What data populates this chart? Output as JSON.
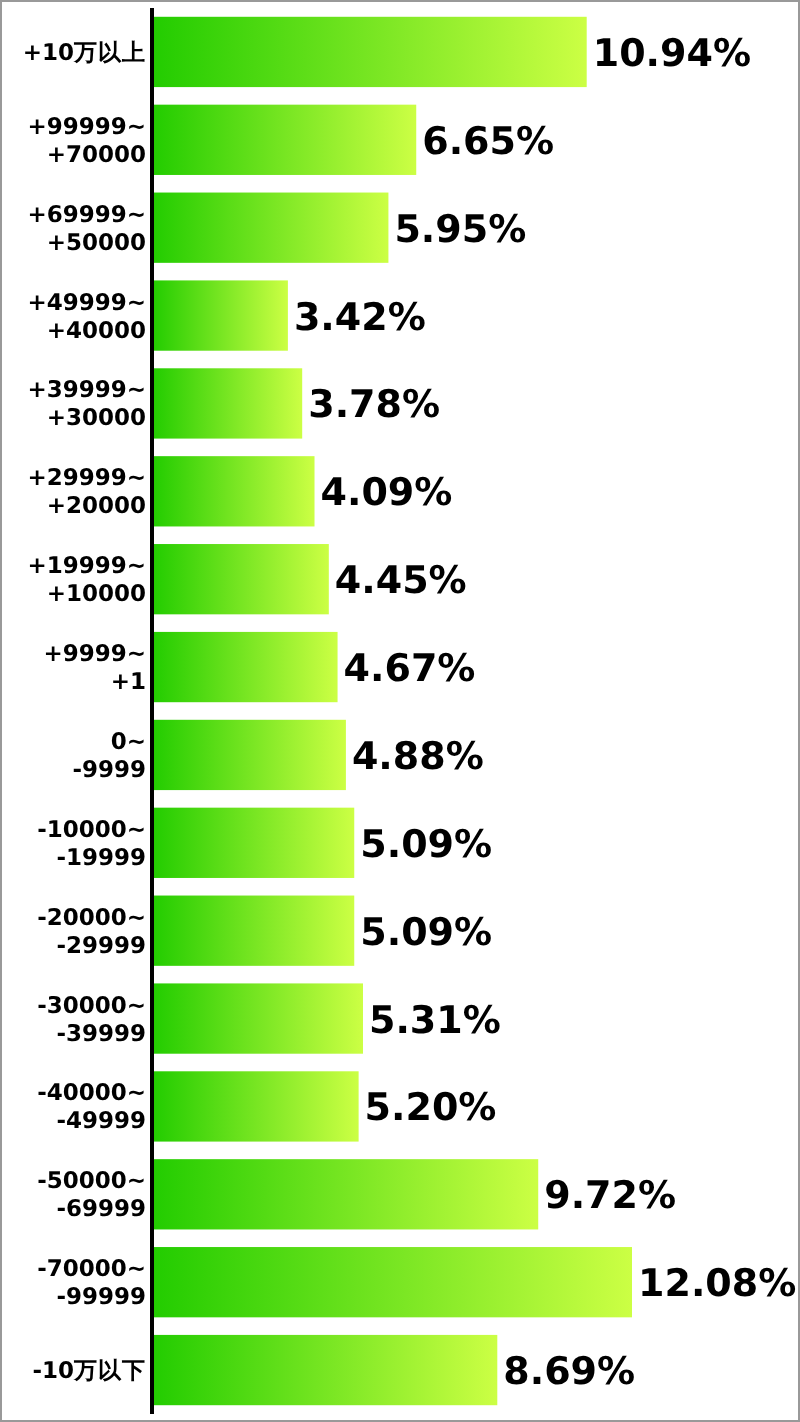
{
  "chart_data": {
    "type": "bar",
    "orientation": "horizontal",
    "color": "#22cc00",
    "categories": [
      "+10万以上",
      "+99999~+70000",
      "+69999~+50000",
      "+49999~+40000",
      "+39999~+30000",
      "+29999~+20000",
      "+19999~+10000",
      "+9999~+1",
      "0~-9999",
      "-10000~-19999",
      "-20000~-29999",
      "-30000~-39999",
      "-40000~-49999",
      "-50000~-69999",
      "-70000~-99999",
      "-10万以下"
    ],
    "values": [
      10.94,
      6.65,
      5.95,
      3.42,
      3.78,
      4.09,
      4.45,
      4.67,
      4.88,
      5.09,
      5.09,
      5.31,
      5.2,
      9.72,
      12.08,
      8.69
    ],
    "value_labels": [
      "10.94%",
      "6.65%",
      "5.95%",
      "3.42%",
      "3.78%",
      "4.09%",
      "4.45%",
      "4.67%",
      "4.88%",
      "5.09%",
      "5.09%",
      "5.31%",
      "5.20%",
      "9.72%",
      "12.08%",
      "8.69%"
    ]
  }
}
